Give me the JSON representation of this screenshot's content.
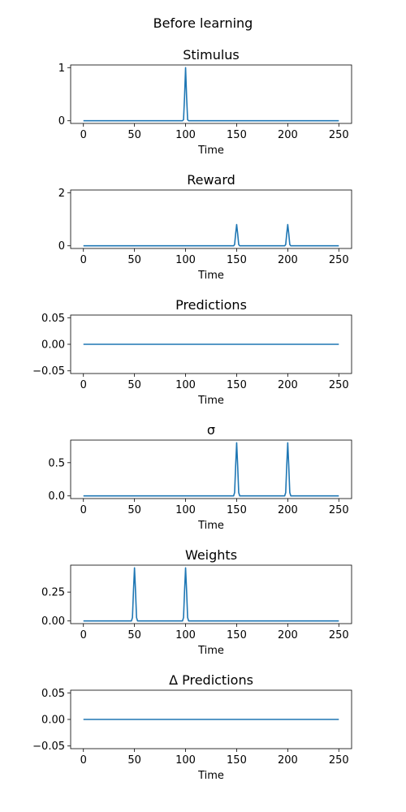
{
  "figure": {
    "title": "Before learning"
  },
  "chart_data": [
    {
      "type": "line",
      "title": "Stimulus",
      "xlabel": "Time",
      "xlim": [
        -12.5,
        262.5
      ],
      "ylim": [
        -0.05,
        1.05
      ],
      "xticks": [
        0,
        50,
        100,
        150,
        200,
        250
      ],
      "xtick_labels": [
        "0",
        "50",
        "100",
        "150",
        "200",
        "250"
      ],
      "yticks": [
        0,
        1
      ],
      "ytick_labels": [
        "0",
        "1"
      ],
      "series": [
        {
          "x": [
            0,
            97,
            98,
            99,
            100,
            101,
            102,
            103,
            250
          ],
          "y": [
            0,
            0,
            0.02,
            0.45,
            1.0,
            0.45,
            0.02,
            0,
            0
          ]
        }
      ]
    },
    {
      "type": "line",
      "title": "Reward",
      "xlabel": "Time",
      "xlim": [
        -12.5,
        262.5
      ],
      "ylim": [
        -0.1,
        2.1
      ],
      "xticks": [
        0,
        50,
        100,
        150,
        200,
        250
      ],
      "xtick_labels": [
        "0",
        "50",
        "100",
        "150",
        "200",
        "250"
      ],
      "yticks": [
        0,
        2
      ],
      "ytick_labels": [
        "0",
        "2"
      ],
      "series": [
        {
          "x": [
            0,
            147,
            148,
            149,
            150,
            151,
            152,
            153,
            197,
            198,
            199,
            200,
            201,
            202,
            203,
            250
          ],
          "y": [
            0,
            0,
            0.05,
            0.45,
            0.8,
            0.45,
            0.05,
            0,
            0,
            0.05,
            0.45,
            0.8,
            0.45,
            0.05,
            0,
            0
          ]
        }
      ]
    },
    {
      "type": "line",
      "title": "Predictions",
      "xlabel": "Time",
      "xlim": [
        -12.5,
        262.5
      ],
      "ylim": [
        -0.055,
        0.055
      ],
      "xticks": [
        0,
        50,
        100,
        150,
        200,
        250
      ],
      "xtick_labels": [
        "0",
        "50",
        "100",
        "150",
        "200",
        "250"
      ],
      "yticks": [
        0.05,
        0,
        -0.05
      ],
      "ytick_labels": [
        "0.05",
        "0.00",
        "−0.05"
      ],
      "series": [
        {
          "x": [
            0,
            250
          ],
          "y": [
            0,
            0
          ]
        }
      ]
    },
    {
      "type": "line",
      "title": "σ",
      "xlabel": "Time",
      "xlim": [
        -12.5,
        262.5
      ],
      "ylim": [
        -0.04,
        0.84
      ],
      "xticks": [
        0,
        50,
        100,
        150,
        200,
        250
      ],
      "xtick_labels": [
        "0",
        "50",
        "100",
        "150",
        "200",
        "250"
      ],
      "yticks": [
        0.5,
        0
      ],
      "ytick_labels": [
        "0.5",
        "0.0"
      ],
      "series": [
        {
          "x": [
            0,
            147,
            148,
            149,
            150,
            151,
            152,
            153,
            197,
            198,
            199,
            200,
            201,
            202,
            203,
            250
          ],
          "y": [
            0,
            0,
            0.05,
            0.45,
            0.8,
            0.45,
            0.05,
            0,
            0,
            0.05,
            0.45,
            0.8,
            0.45,
            0.05,
            0,
            0
          ]
        }
      ]
    },
    {
      "type": "line",
      "title": "Weights",
      "xlabel": "Time",
      "xlim": [
        -12.5,
        262.5
      ],
      "ylim": [
        -0.023,
        0.483
      ],
      "xticks": [
        0,
        50,
        100,
        150,
        200,
        250
      ],
      "xtick_labels": [
        "0",
        "50",
        "100",
        "150",
        "200",
        "250"
      ],
      "yticks": [
        0.25,
        0
      ],
      "ytick_labels": [
        "0.25",
        "0.00"
      ],
      "series": [
        {
          "x": [
            0,
            47,
            48,
            49,
            50,
            51,
            52,
            53,
            97,
            98,
            99,
            100,
            101,
            102,
            103,
            250
          ],
          "y": [
            0,
            0,
            0.03,
            0.26,
            0.46,
            0.26,
            0.03,
            0,
            0,
            0.03,
            0.26,
            0.46,
            0.26,
            0.03,
            0,
            0
          ]
        }
      ]
    },
    {
      "type": "line",
      "title": "Δ Predictions",
      "xlabel": "Time",
      "xlim": [
        -12.5,
        262.5
      ],
      "ylim": [
        -0.055,
        0.055
      ],
      "xticks": [
        0,
        50,
        100,
        150,
        200,
        250
      ],
      "xtick_labels": [
        "0",
        "50",
        "100",
        "150",
        "200",
        "250"
      ],
      "yticks": [
        0.05,
        0,
        -0.05
      ],
      "ytick_labels": [
        "0.05",
        "0.00",
        "−0.05"
      ],
      "series": [
        {
          "x": [
            0,
            250
          ],
          "y": [
            0,
            0
          ]
        }
      ]
    }
  ]
}
